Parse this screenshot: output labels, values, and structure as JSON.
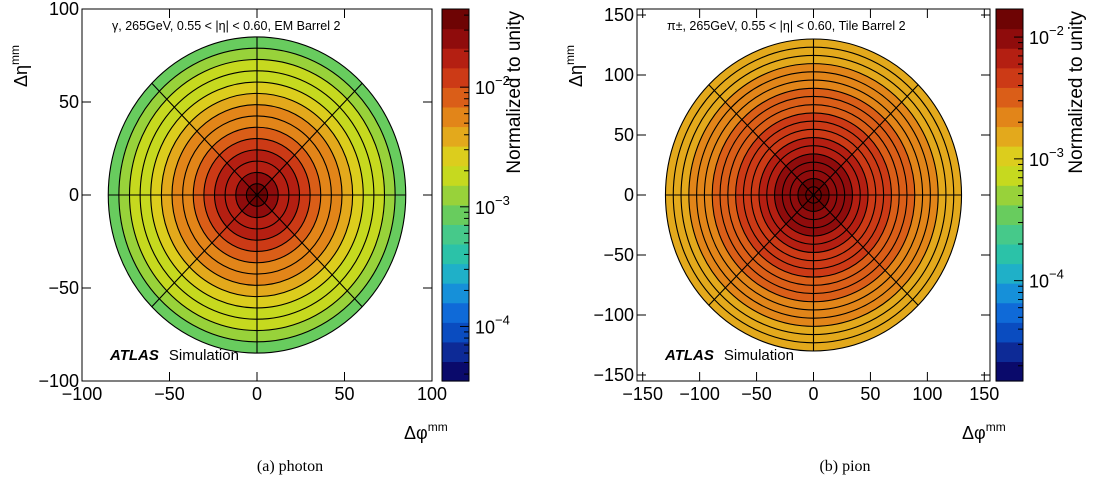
{
  "chart_data": [
    {
      "type": "heatmap",
      "subtype": "polar-binned",
      "title": "γ, 265GeV, 0.55 < |η| < 0.60, EM Barrel 2",
      "xlabel": "Δφ",
      "xlabel_sup": "mm",
      "ylabel": "Δη",
      "ylabel_sup": "mm",
      "xlim": [
        -100,
        100
      ],
      "ylim": [
        -100,
        100
      ],
      "xticks": [
        -100,
        -50,
        0,
        50,
        100
      ],
      "yticks": [
        -100,
        -50,
        0,
        50,
        100
      ],
      "xtick_labels": [
        "−100",
        "−50",
        "0",
        "50",
        "100"
      ],
      "ytick_labels": [
        "−100",
        "−50",
        "0",
        "50",
        "100"
      ],
      "radius": 85,
      "n_rings": 14,
      "n_sectors": 8,
      "density_center": 0.04,
      "density_edge": 0.0008,
      "colorbar": {
        "label": "Normalized to unity",
        "scale": "log",
        "range": [
          3.5e-05,
          0.045
        ],
        "ticks": [
          {
            "value": 0.01,
            "base": "10",
            "exp": "−2"
          },
          {
            "value": 0.001,
            "base": "10",
            "exp": "−3"
          },
          {
            "value": 0.0001,
            "base": "10",
            "exp": "−4"
          }
        ]
      },
      "watermark": {
        "bold": "ATLAS",
        "normal": "Simulation"
      },
      "caption": "(a) photon"
    },
    {
      "type": "heatmap",
      "subtype": "polar-binned",
      "title": "π±, 265GeV, 0.55 < |η| < 0.60, Tile Barrel 2",
      "xlabel": "Δφ",
      "xlabel_sup": "mm",
      "ylabel": "Δη",
      "ylabel_sup": "mm",
      "xlim": [
        -155,
        155
      ],
      "ylim": [
        -155,
        155
      ],
      "xticks": [
        -150,
        -100,
        -50,
        0,
        50,
        100,
        150
      ],
      "yticks": [
        -150,
        -100,
        -50,
        0,
        50,
        100,
        150
      ],
      "xtick_labels": [
        "−150",
        "−100",
        "−50",
        "0",
        "50",
        "100",
        "150"
      ],
      "ytick_labels": [
        "−150",
        "−100",
        "−50",
        "0",
        "50",
        "100",
        "150"
      ],
      "radius": 130,
      "n_rings": 19,
      "n_sectors": 8,
      "density_center": 0.015,
      "density_edge": 0.0012,
      "colorbar": {
        "label": "Normalized to unity",
        "scale": "log",
        "range": [
          1.5e-05,
          0.017
        ],
        "ticks": [
          {
            "value": 0.01,
            "base": "10",
            "exp": "−2"
          },
          {
            "value": 0.001,
            "base": "10",
            "exp": "−3"
          },
          {
            "value": 0.0001,
            "base": "10",
            "exp": "−4"
          }
        ]
      },
      "watermark": {
        "bold": "ATLAS",
        "normal": "Simulation"
      },
      "caption": "(b) pion"
    }
  ],
  "colors": {
    "palette": [
      "#0a0a6b",
      "#0d2a96",
      "#0a4cc0",
      "#0f6ad8",
      "#1690d9",
      "#1fb0c8",
      "#2bc2a8",
      "#46c98a",
      "#68cc5e",
      "#98d23a",
      "#c6d91f",
      "#dccd1d",
      "#e3a91c",
      "#e28519",
      "#da5e18",
      "#cc3a16",
      "#b41f12",
      "#8f0c0c",
      "#6e0404"
    ],
    "grid": "#000000"
  }
}
